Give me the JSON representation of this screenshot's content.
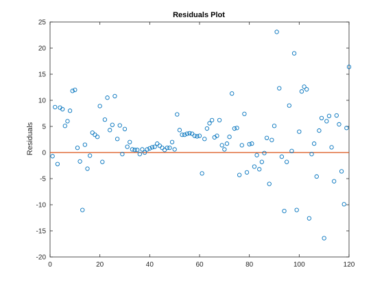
{
  "chart_data": {
    "type": "scatter",
    "title": "Residuals Plot",
    "xlabel": "",
    "ylabel": "Residuals",
    "xlim": [
      0,
      120
    ],
    "ylim": [
      -20,
      25
    ],
    "xticks": [
      "0",
      "20",
      "40",
      "60",
      "80",
      "100",
      "120"
    ],
    "yticks": [
      "-20",
      "-15",
      "-10",
      "-5",
      "0",
      "5",
      "10",
      "15",
      "20",
      "25"
    ],
    "grid": false,
    "marker_color": "#0072BD",
    "zero_line_color": "#D95319",
    "zero_line_y": 0,
    "series": [
      {
        "x": [
          1,
          2,
          3,
          4,
          5,
          6,
          7,
          8,
          9,
          10,
          11,
          12,
          13,
          14,
          15,
          16,
          17,
          18,
          19,
          20,
          21,
          22,
          23,
          24,
          25,
          26,
          27,
          28,
          29,
          30,
          31,
          32,
          33,
          34,
          35,
          36,
          37,
          38,
          39,
          40,
          41,
          42,
          43,
          44,
          45,
          46,
          47,
          48,
          49,
          50,
          51,
          52,
          53,
          54,
          55,
          56,
          57,
          58,
          59,
          60,
          61,
          62,
          63,
          64,
          65,
          66,
          67,
          68,
          69,
          70,
          71,
          72,
          73,
          74,
          75,
          76,
          77,
          78,
          79,
          80,
          81,
          82,
          83,
          84,
          85,
          86,
          87,
          88,
          89,
          90,
          91,
          92,
          93,
          94,
          95,
          96,
          97,
          98,
          99,
          100,
          101,
          102,
          103,
          104,
          105,
          106,
          107,
          108,
          109,
          110,
          111,
          112,
          113,
          114,
          115,
          116,
          117,
          118,
          119,
          120
        ],
        "y": [
          -0.7,
          8.7,
          -2.2,
          8.6,
          8.3,
          5.1,
          6.0,
          8.0,
          11.8,
          12.0,
          0.9,
          -1.7,
          -11.0,
          1.5,
          -3.1,
          -0.6,
          3.8,
          3.4,
          3.0,
          8.9,
          -1.8,
          6.3,
          10.5,
          4.3,
          5.3,
          10.8,
          2.6,
          5.2,
          -0.3,
          4.5,
          1.1,
          2.0,
          0.6,
          0.5,
          0.5,
          -0.3,
          0.6,
          0.0,
          0.6,
          0.8,
          1.0,
          1.1,
          1.7,
          1.3,
          0.9,
          0.5,
          0.9,
          0.9,
          2.0,
          0.6,
          7.3,
          4.3,
          3.4,
          3.4,
          3.6,
          3.7,
          3.6,
          3.2,
          3.1,
          3.2,
          -4.0,
          2.6,
          4.6,
          5.6,
          6.2,
          2.9,
          3.2,
          6.2,
          1.4,
          0.6,
          1.7,
          3.0,
          11.3,
          4.6,
          4.7,
          -4.3,
          1.4,
          7.4,
          -3.8,
          1.6,
          1.7,
          -2.7,
          -0.5,
          -3.2,
          -1.8,
          -0.1,
          2.8,
          -6.0,
          2.4,
          5.1,
          23.1,
          12.3,
          -0.8,
          -11.2,
          -1.8,
          9.0,
          0.3,
          19.0,
          -11.0,
          4.0,
          11.7,
          12.6,
          12.1,
          -12.6,
          -0.3,
          1.7,
          -4.6,
          4.2,
          6.6,
          -16.4,
          6.0,
          7.0,
          1.0,
          -5.5,
          7.1,
          5.4,
          -3.6,
          -9.9,
          4.7,
          16.4
        ]
      }
    ]
  }
}
